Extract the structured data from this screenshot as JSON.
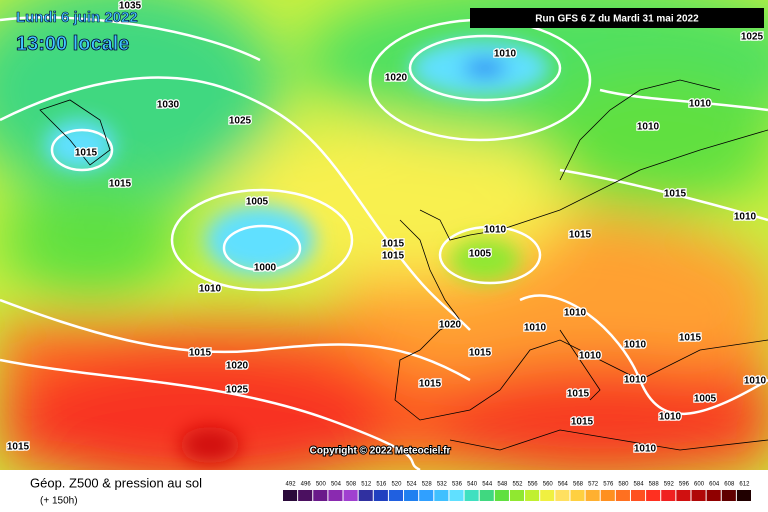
{
  "header": {
    "date": "Lundi 6 juin 2022",
    "time": "13:00 locale",
    "run": "Run GFS 6 Z du Mardi 31 mai 2022"
  },
  "copyright": "Copyright © 2022 Meteociel.fr",
  "legend": {
    "title": "Géop. Z500 & pression au sol",
    "subtitle": "(+ 150h)"
  },
  "isobars": [
    "1035",
    "1025",
    "1010",
    "1020",
    "1030",
    "1025",
    "1010",
    "1010",
    "1015",
    "1015",
    "1005",
    "1015",
    "1010",
    "1010",
    "1015",
    "1015",
    "1015",
    "1005",
    "1000",
    "1010",
    "1020",
    "1010",
    "1010",
    "1015",
    "1015",
    "1020",
    "1010",
    "1010",
    "1015",
    "1010",
    "1015",
    "1025",
    "1015",
    "1010",
    "1005",
    "1010",
    "1015",
    "1015",
    "1010"
  ],
  "colorbar": {
    "labels": [
      492,
      496,
      500,
      504,
      508,
      512,
      516,
      520,
      524,
      528,
      532,
      536,
      540,
      544,
      548,
      552,
      556,
      560,
      564,
      568,
      572,
      576,
      580,
      584,
      588,
      592,
      596,
      600,
      604,
      608,
      612
    ],
    "colors": [
      "#2a0a3a",
      "#4b1060",
      "#6a1a8a",
      "#8a2ab0",
      "#a040d0",
      "#3030a0",
      "#2040c0",
      "#2060e0",
      "#2080f0",
      "#30a0ff",
      "#40c0ff",
      "#60e0ff",
      "#40e0c0",
      "#40d880",
      "#60e040",
      "#90e830",
      "#c0f030",
      "#f0f040",
      "#ffe060",
      "#ffd040",
      "#ffb030",
      "#ff9020",
      "#ff7020",
      "#ff5020",
      "#ff3020",
      "#f02020",
      "#d01010",
      "#b00808",
      "#900000",
      "#600000",
      "#200000"
    ]
  }
}
